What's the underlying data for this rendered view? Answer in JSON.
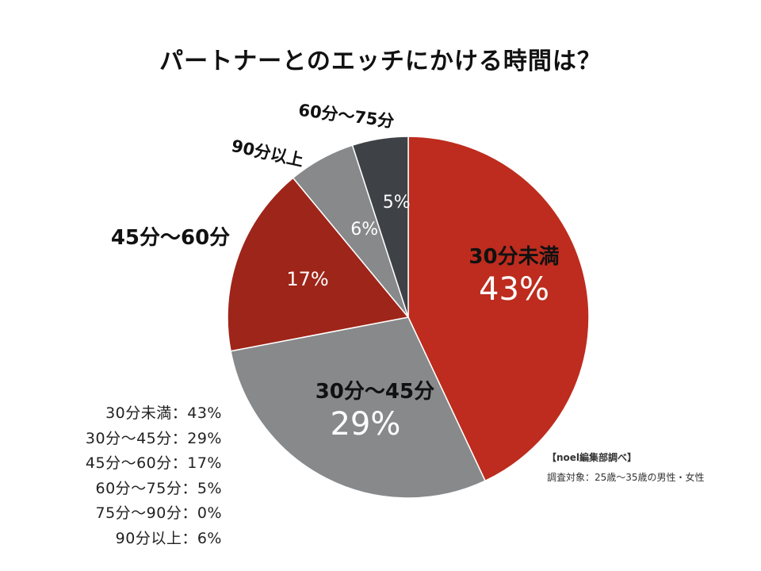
{
  "chart_data": {
    "type": "pie",
    "title": "パートナーとのエッチにかける時間は？",
    "start_angle_deg": 0,
    "direction": "clockwise",
    "slices": [
      {
        "label": "30分未満",
        "value": 43,
        "value_label": "43%",
        "color": "#bd2c1e"
      },
      {
        "label": "30分〜45分",
        "value": 29,
        "value_label": "29%",
        "color": "#87898b"
      },
      {
        "label": "45分〜60分",
        "value": 17,
        "value_label": "17%",
        "color": "#9e2519"
      },
      {
        "label": "90分以上",
        "value": 6,
        "value_label": "6%",
        "color": "#87898b"
      },
      {
        "label": "60分〜75分",
        "value": 5,
        "value_label": "5%",
        "color": "#3e4246"
      }
    ]
  },
  "summary": [
    "30分未満：43%",
    "30分〜45分：29%",
    "45分〜60分：17%",
    "60分〜75分：5%",
    "75分〜90分：0%",
    "90分以上：6%"
  ],
  "notes": {
    "source": "【noel編集部調べ】",
    "target": "調査対象：25歳〜35歳の男性・女性"
  }
}
